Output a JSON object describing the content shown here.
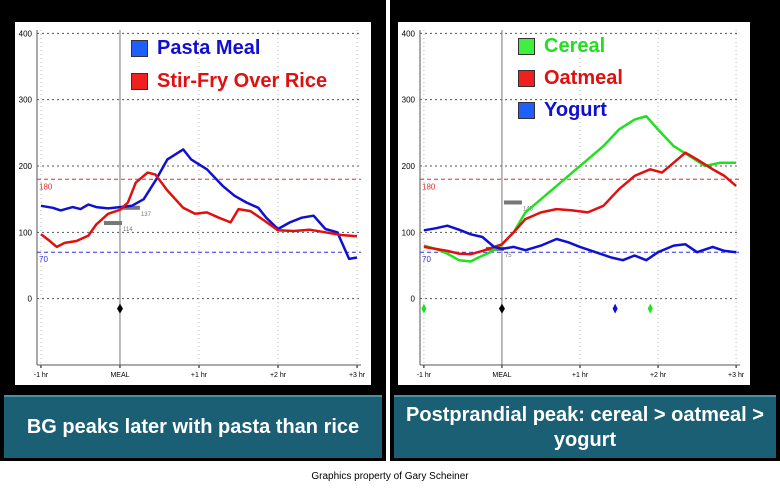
{
  "chart_data": [
    {
      "type": "line",
      "x_ticks": [
        "-1 hr",
        "MEAL",
        "+1 hr",
        "+2 hr",
        "+3 hr"
      ],
      "x_tick_values": [
        -1,
        0,
        1,
        2,
        3
      ],
      "y_ticks": [
        "400",
        "300",
        "200",
        "100",
        "0"
      ],
      "y_tick_values": [
        400,
        300,
        200,
        100,
        0
      ],
      "xlim": [
        -1.05,
        3.05
      ],
      "ylim": [
        -100,
        405
      ],
      "reference_lines": [
        {
          "label": "180",
          "value": 180,
          "color": "#e03030"
        },
        {
          "label": "70",
          "value": 70,
          "color": "#3030e0"
        }
      ],
      "meal_readings": [
        {
          "label": "114",
          "value": 114
        },
        {
          "label": "137",
          "value": 137
        }
      ],
      "series": [
        {
          "name": "Pasta Meal",
          "color": "#1010d0",
          "swatch": "#1f5fff",
          "points": [
            [
              -1,
              140
            ],
            [
              -0.85,
              137
            ],
            [
              -0.75,
              133
            ],
            [
              -0.6,
              138
            ],
            [
              -0.5,
              135
            ],
            [
              -0.4,
              142
            ],
            [
              -0.3,
              138
            ],
            [
              -0.15,
              136
            ],
            [
              0,
              138
            ],
            [
              0.15,
              140
            ],
            [
              0.3,
              150
            ],
            [
              0.45,
              178
            ],
            [
              0.6,
              210
            ],
            [
              0.8,
              225
            ],
            [
              0.9,
              210
            ],
            [
              1.1,
              195
            ],
            [
              1.3,
              170
            ],
            [
              1.45,
              155
            ],
            [
              1.6,
              145
            ],
            [
              1.75,
              137
            ],
            [
              1.85,
              122
            ],
            [
              2.0,
              105
            ],
            [
              2.15,
              115
            ],
            [
              2.3,
              122
            ],
            [
              2.45,
              125
            ],
            [
              2.6,
              105
            ],
            [
              2.75,
              100
            ],
            [
              2.9,
              60
            ],
            [
              3.0,
              62
            ]
          ]
        },
        {
          "name": "Stir-Fry Over Rice",
          "color": "#e01010",
          "swatch": "#f02020",
          "points": [
            [
              -1,
              97
            ],
            [
              -0.9,
              88
            ],
            [
              -0.8,
              78
            ],
            [
              -0.7,
              84
            ],
            [
              -0.55,
              87
            ],
            [
              -0.4,
              95
            ],
            [
              -0.3,
              112
            ],
            [
              -0.15,
              128
            ],
            [
              0,
              134
            ],
            [
              0.1,
              145
            ],
            [
              0.2,
              175
            ],
            [
              0.35,
              190
            ],
            [
              0.45,
              187
            ],
            [
              0.6,
              163
            ],
            [
              0.8,
              137
            ],
            [
              0.95,
              128
            ],
            [
              1.1,
              130
            ],
            [
              1.25,
              122
            ],
            [
              1.4,
              115
            ],
            [
              1.5,
              135
            ],
            [
              1.65,
              132
            ],
            [
              1.8,
              120
            ],
            [
              2.0,
              103
            ],
            [
              2.2,
              102
            ],
            [
              2.4,
              104
            ],
            [
              2.6,
              100
            ],
            [
              2.8,
              96
            ],
            [
              3.0,
              94
            ]
          ]
        }
      ]
    },
    {
      "type": "line",
      "x_ticks": [
        "-1 hr",
        "MEAL",
        "+1 hr",
        "+2 hr",
        "+3 hr"
      ],
      "x_tick_values": [
        -1,
        0,
        1,
        2,
        3
      ],
      "y_ticks": [
        "400",
        "300",
        "200",
        "100",
        "0"
      ],
      "y_tick_values": [
        400,
        300,
        200,
        100,
        0
      ],
      "xlim": [
        -1.05,
        3.05
      ],
      "ylim": [
        -100,
        405
      ],
      "reference_lines": [
        {
          "label": "180",
          "value": 180,
          "color": "#e03030"
        },
        {
          "label": "70",
          "value": 70,
          "color": "#3030e0"
        }
      ],
      "meal_readings": [
        {
          "label": "75",
          "value": 75
        },
        {
          "label": "145",
          "value": 145
        }
      ],
      "series": [
        {
          "name": "Cereal",
          "color": "#20e020",
          "swatch": "#40f040",
          "points": [
            [
              -1,
              80
            ],
            [
              -0.85,
              75
            ],
            [
              -0.7,
              68
            ],
            [
              -0.55,
              58
            ],
            [
              -0.4,
              56
            ],
            [
              -0.3,
              62
            ],
            [
              -0.15,
              70
            ],
            [
              0,
              82
            ],
            [
              0.15,
              100
            ],
            [
              0.3,
              130
            ],
            [
              0.5,
              150
            ],
            [
              0.7,
              170
            ],
            [
              0.9,
              190
            ],
            [
              1.1,
              210
            ],
            [
              1.3,
              230
            ],
            [
              1.5,
              255
            ],
            [
              1.7,
              270
            ],
            [
              1.85,
              275
            ],
            [
              2.0,
              255
            ],
            [
              2.2,
              230
            ],
            [
              2.4,
              215
            ],
            [
              2.6,
              200
            ],
            [
              2.8,
              205
            ],
            [
              3.0,
              205
            ]
          ]
        },
        {
          "name": "Oatmeal",
          "color": "#e01010",
          "swatch": "#f02020",
          "points": [
            [
              -1,
              78
            ],
            [
              -0.85,
              75
            ],
            [
              -0.7,
              72
            ],
            [
              -0.55,
              68
            ],
            [
              -0.4,
              67
            ],
            [
              -0.25,
              72
            ],
            [
              -0.1,
              78
            ],
            [
              0,
              82
            ],
            [
              0.15,
              100
            ],
            [
              0.3,
              120
            ],
            [
              0.5,
              130
            ],
            [
              0.7,
              135
            ],
            [
              0.9,
              133
            ],
            [
              1.1,
              130
            ],
            [
              1.3,
              140
            ],
            [
              1.5,
              165
            ],
            [
              1.7,
              185
            ],
            [
              1.9,
              195
            ],
            [
              2.05,
              190
            ],
            [
              2.2,
              205
            ],
            [
              2.35,
              220
            ],
            [
              2.5,
              210
            ],
            [
              2.7,
              195
            ],
            [
              2.85,
              185
            ],
            [
              3.0,
              170
            ]
          ]
        },
        {
          "name": "Yogurt",
          "color": "#1010d0",
          "swatch": "#1f5fff",
          "points": [
            [
              -1,
              103
            ],
            [
              -0.85,
              106
            ],
            [
              -0.7,
              110
            ],
            [
              -0.55,
              104
            ],
            [
              -0.4,
              97
            ],
            [
              -0.25,
              93
            ],
            [
              -0.1,
              78
            ],
            [
              0,
              75
            ],
            [
              0.15,
              78
            ],
            [
              0.3,
              73
            ],
            [
              0.5,
              80
            ],
            [
              0.7,
              90
            ],
            [
              0.85,
              85
            ],
            [
              1.0,
              78
            ],
            [
              1.2,
              70
            ],
            [
              1.4,
              62
            ],
            [
              1.55,
              58
            ],
            [
              1.7,
              65
            ],
            [
              1.85,
              58
            ],
            [
              2.0,
              70
            ],
            [
              2.2,
              80
            ],
            [
              2.35,
              82
            ],
            [
              2.5,
              70
            ],
            [
              2.7,
              78
            ],
            [
              2.85,
              72
            ],
            [
              3.0,
              70
            ]
          ]
        }
      ],
      "markers": [
        {
          "x": -1,
          "color": "#20e020"
        },
        {
          "x": 1.45,
          "color": "#1010d0"
        },
        {
          "x": 1.9,
          "color": "#20e020"
        }
      ]
    }
  ],
  "captions": {
    "left": "BG peaks later with pasta than rice",
    "right": "Postprandial peak: cereal > oatmeal > yogurt"
  },
  "credit": "Graphics property of Gary Scheiner"
}
